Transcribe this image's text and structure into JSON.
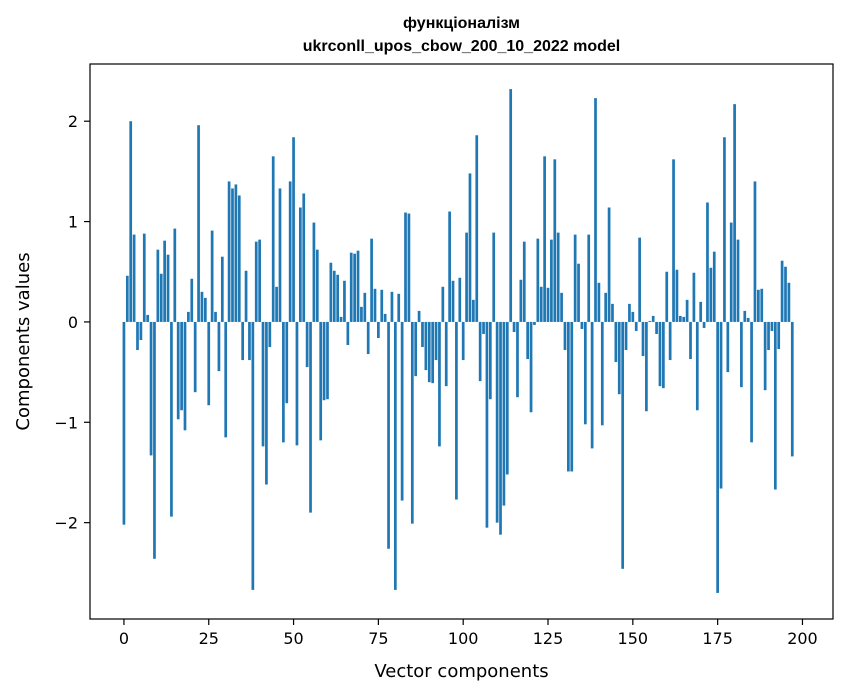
{
  "chart_data": {
    "type": "bar",
    "title_line1": "функціоналізм",
    "title_line2": "ukrconll_upos_cbow_200_10_2022 model",
    "xlabel": "Vector components",
    "ylabel": "Components values",
    "xlim": [
      -10,
      209
    ],
    "ylim": [
      -2.96,
      2.57
    ],
    "x_ticks": [
      0,
      25,
      50,
      75,
      100,
      125,
      150,
      175,
      200
    ],
    "y_ticks": [
      -2,
      -1,
      0,
      1,
      2
    ],
    "y_tick_labels": [
      "−2",
      "−1",
      "0",
      "1",
      "2"
    ],
    "bar_color": "#1f77b4",
    "grid": false,
    "values": [
      -2.02,
      0.46,
      2.0,
      0.87,
      -0.28,
      -0.18,
      0.88,
      0.07,
      -1.33,
      -2.36,
      0.72,
      0.48,
      0.81,
      0.67,
      -1.94,
      0.93,
      -0.97,
      -0.88,
      -1.08,
      0.1,
      0.43,
      -0.7,
      1.96,
      0.3,
      0.24,
      -0.83,
      0.91,
      0.1,
      -0.49,
      0.65,
      -1.15,
      1.4,
      1.33,
      1.37,
      1.26,
      -0.38,
      0.51,
      -0.38,
      -2.67,
      0.8,
      0.82,
      -1.24,
      -1.62,
      -0.25,
      1.65,
      0.35,
      1.33,
      -1.2,
      -0.81,
      1.4,
      1.84,
      -1.23,
      1.14,
      1.28,
      -0.45,
      -1.9,
      0.99,
      0.72,
      -1.18,
      -0.78,
      -0.77,
      0.59,
      0.51,
      0.47,
      0.05,
      0.41,
      -0.23,
      0.69,
      0.68,
      0.71,
      0.15,
      0.29,
      -0.32,
      0.83,
      0.33,
      -0.16,
      0.32,
      0.08,
      -2.26,
      0.3,
      -2.67,
      0.28,
      -1.78,
      1.09,
      1.08,
      -2.01,
      -0.54,
      0.11,
      -0.25,
      -0.48,
      -0.6,
      -0.61,
      -0.38,
      -1.24,
      0.35,
      -0.64,
      1.1,
      0.41,
      -1.77,
      0.44,
      -0.38,
      0.89,
      1.48,
      0.22,
      1.86,
      -0.59,
      -0.12,
      -2.05,
      -0.77,
      0.89,
      -2.0,
      -2.12,
      -1.83,
      -1.52,
      2.32,
      -0.1,
      -0.75,
      0.42,
      0.8,
      -0.37,
      -0.9,
      -0.03,
      0.83,
      0.35,
      1.65,
      0.34,
      0.82,
      1.62,
      0.89,
      0.29,
      -0.28,
      -1.49,
      -1.49,
      0.87,
      0.58,
      -0.07,
      -1.02,
      0.87,
      -1.26,
      2.23,
      0.39,
      -1.03,
      0.29,
      1.14,
      0.18,
      -0.4,
      -0.72,
      -2.46,
      -0.28,
      0.18,
      0.1,
      -0.09,
      0.84,
      -0.34,
      -0.89,
      0.01,
      0.06,
      -0.12,
      -0.64,
      -0.66,
      0.5,
      -0.38,
      1.62,
      0.52,
      0.06,
      0.05,
      0.22,
      -0.37,
      0.49,
      -0.88,
      0.2,
      -0.06,
      1.19,
      0.54,
      0.7,
      -2.7,
      -1.66,
      1.84,
      -0.5,
      0.99,
      2.17,
      0.82,
      -0.65,
      0.11,
      0.04,
      -1.2,
      1.4,
      0.32,
      0.33,
      -0.68,
      -0.28,
      -0.09,
      -1.67,
      -0.27,
      0.61,
      0.55,
      0.39,
      -1.34
    ]
  }
}
